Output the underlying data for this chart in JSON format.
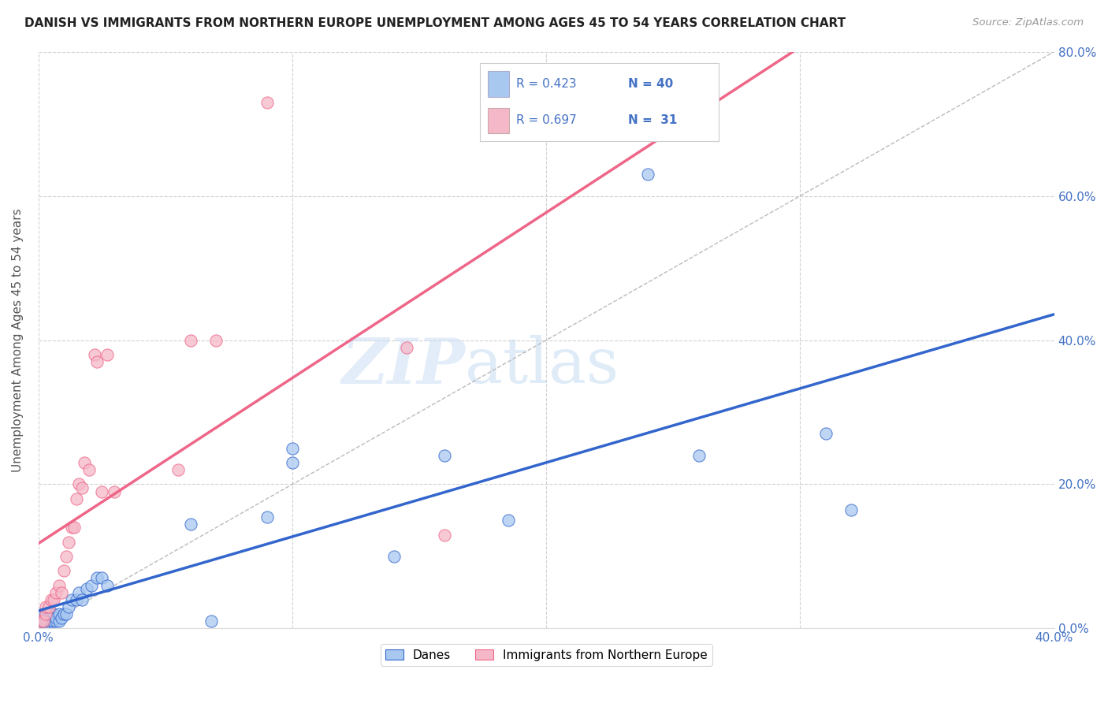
{
  "title": "DANISH VS IMMIGRANTS FROM NORTHERN EUROPE UNEMPLOYMENT AMONG AGES 45 TO 54 YEARS CORRELATION CHART",
  "source": "Source: ZipAtlas.com",
  "ylabel": "Unemployment Among Ages 45 to 54 years",
  "blue_color": "#a8c8f0",
  "pink_color": "#f5b8c8",
  "blue_line_color": "#3366cc",
  "pink_line_color": "#ee6688",
  "legend_text_color": "#4472c4",
  "blue_R": 0.423,
  "blue_N": 40,
  "pink_R": 0.697,
  "pink_N": 31,
  "blue_scatter_x": [
    0.001,
    0.002,
    0.002,
    0.003,
    0.003,
    0.004,
    0.004,
    0.005,
    0.005,
    0.006,
    0.006,
    0.007,
    0.007,
    0.008,
    0.008,
    0.009,
    0.01,
    0.011,
    0.012,
    0.013,
    0.015,
    0.016,
    0.017,
    0.019,
    0.021,
    0.023,
    0.025,
    0.027,
    0.06,
    0.068,
    0.09,
    0.1,
    0.1,
    0.14,
    0.16,
    0.185,
    0.24,
    0.26,
    0.31,
    0.32
  ],
  "blue_scatter_y": [
    0.01,
    0.01,
    0.02,
    0.01,
    0.02,
    0.01,
    0.02,
    0.01,
    0.02,
    0.01,
    0.02,
    0.01,
    0.015,
    0.01,
    0.02,
    0.015,
    0.02,
    0.02,
    0.03,
    0.04,
    0.04,
    0.05,
    0.04,
    0.055,
    0.06,
    0.07,
    0.07,
    0.06,
    0.145,
    0.01,
    0.155,
    0.25,
    0.23,
    0.1,
    0.24,
    0.15,
    0.63,
    0.24,
    0.27,
    0.165
  ],
  "pink_scatter_x": [
    0.001,
    0.002,
    0.003,
    0.003,
    0.004,
    0.005,
    0.006,
    0.007,
    0.008,
    0.009,
    0.01,
    0.011,
    0.012,
    0.013,
    0.014,
    0.015,
    0.016,
    0.017,
    0.018,
    0.02,
    0.022,
    0.023,
    0.025,
    0.027,
    0.03,
    0.055,
    0.06,
    0.07,
    0.09,
    0.145,
    0.16
  ],
  "pink_scatter_y": [
    0.01,
    0.01,
    0.02,
    0.03,
    0.03,
    0.04,
    0.04,
    0.05,
    0.06,
    0.05,
    0.08,
    0.1,
    0.12,
    0.14,
    0.14,
    0.18,
    0.2,
    0.195,
    0.23,
    0.22,
    0.38,
    0.37,
    0.19,
    0.38,
    0.19,
    0.22,
    0.4,
    0.4,
    0.73,
    0.39,
    0.13
  ],
  "xlim": [
    0,
    0.4
  ],
  "ylim": [
    0,
    0.8
  ],
  "yticks": [
    0.0,
    0.2,
    0.4,
    0.6,
    0.8
  ],
  "yticklabels": [
    "0.0%",
    "20.0%",
    "40.0%",
    "60.0%",
    "80.0%"
  ],
  "xtick_left": "0.0%",
  "xtick_right": "40.0%",
  "watermark_zip": "ZIP",
  "watermark_atlas": "atlas"
}
